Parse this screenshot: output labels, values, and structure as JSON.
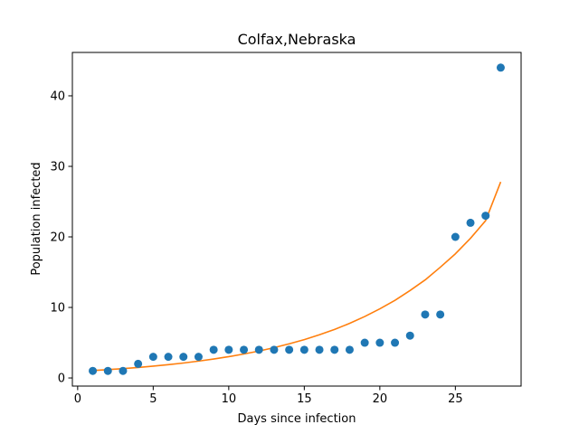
{
  "chart_data": {
    "type": "scatter",
    "title": "Colfax,Nebraska",
    "xlabel": "Days since infection",
    "ylabel": "Population infected",
    "xlim": [
      -0.35,
      29.35
    ],
    "ylim": [
      -1.15,
      46.15
    ],
    "xticks": [
      0,
      5,
      10,
      15,
      20,
      25
    ],
    "yticks": [
      0,
      10,
      20,
      30,
      40
    ],
    "grid": false,
    "legend": "none",
    "series": [
      {
        "kind": "scatter",
        "color": "#1f77b4",
        "x": [
          1,
          2,
          3,
          4,
          5,
          6,
          7,
          8,
          9,
          10,
          11,
          12,
          13,
          14,
          15,
          16,
          17,
          18,
          19,
          20,
          21,
          22,
          23,
          24,
          25,
          26,
          27,
          28
        ],
        "y": [
          1,
          1,
          1,
          2,
          3,
          3,
          3,
          3,
          4,
          4,
          4,
          4,
          4,
          4,
          4,
          4,
          4,
          4,
          5,
          5,
          5,
          6,
          9,
          9,
          20,
          22,
          23,
          44
        ]
      },
      {
        "kind": "line",
        "color": "#ff7f0e",
        "x": [
          1,
          2,
          3,
          4,
          5,
          6,
          7,
          8,
          9,
          10,
          11,
          12,
          13,
          14,
          15,
          16,
          17,
          18,
          19,
          20,
          21,
          22,
          23,
          24,
          25,
          26,
          27,
          28
        ],
        "y": [
          1.05,
          1.18,
          1.33,
          1.49,
          1.68,
          1.89,
          2.12,
          2.39,
          2.69,
          3.02,
          3.4,
          3.82,
          4.3,
          4.84,
          5.44,
          6.12,
          6.88,
          7.74,
          8.71,
          9.8,
          11.0,
          12.4,
          13.9,
          15.7,
          17.6,
          19.8,
          22.3,
          27.8
        ]
      }
    ]
  }
}
